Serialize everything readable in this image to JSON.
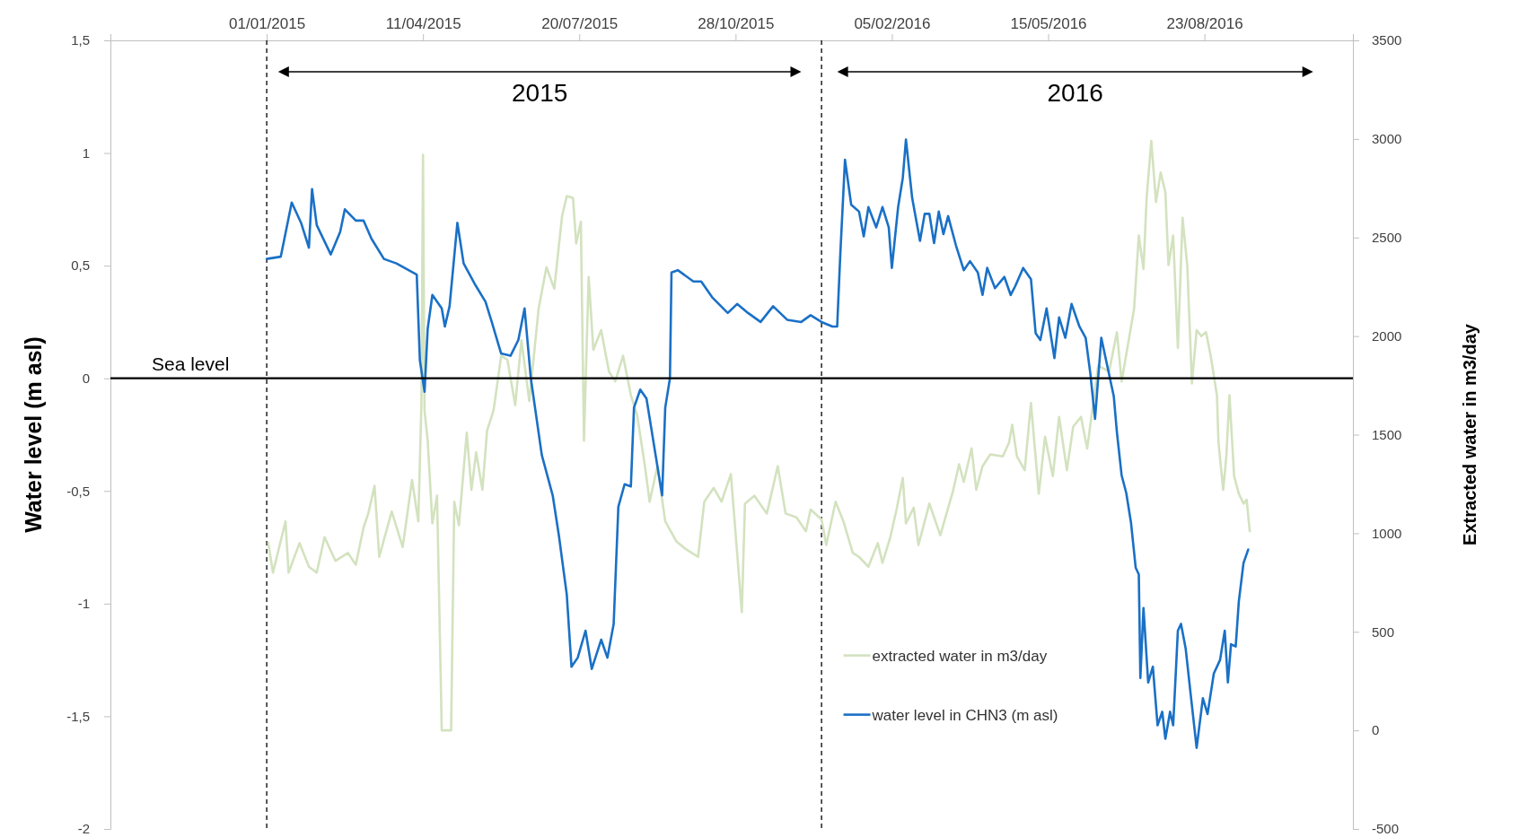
{
  "chart_data": {
    "type": "line",
    "xlabel": null,
    "ylabel": "Water level (m asl)",
    "y2label": "Extracted water in m3/day",
    "xlim": [
      "2014-09-23",
      "2016-11-26"
    ],
    "xticks": [
      {
        "value": "2015-01-01",
        "label": "01/01/2015"
      },
      {
        "value": "2015-04-11",
        "label": "11/04/2015"
      },
      {
        "value": "2015-07-20",
        "label": "20/07/2015"
      },
      {
        "value": "2015-10-28",
        "label": "28/10/2015"
      },
      {
        "value": "2016-02-05",
        "label": "05/02/2016"
      },
      {
        "value": "2016-05-15",
        "label": "15/05/2016"
      },
      {
        "value": "2016-08-23",
        "label": "23/08/2016"
      }
    ],
    "ylim": [
      -2,
      1.5
    ],
    "yticks": [
      -2,
      {
        "value": -1.5,
        "label": "-1,5"
      },
      -1,
      {
        "value": -0.5,
        "label": "-0,5"
      },
      0,
      {
        "value": 0.5,
        "label": "0,5"
      },
      1,
      {
        "value": 1.5,
        "label": "1,5"
      }
    ],
    "y2lim": [
      -500,
      3500
    ],
    "y2ticks": [
      -500,
      0,
      500,
      1000,
      1500,
      2000,
      2500,
      3000,
      3500
    ],
    "legend": "bottom",
    "annotations": [
      "2015",
      "2016"
    ],
    "ref_lines": [
      {
        "axis": "y",
        "value": 0,
        "label": "Sea level",
        "color": "#000000",
        "line_style": "solid"
      },
      {
        "axis": "x",
        "value": "2015-01-01",
        "color": "#000000",
        "line_style": "dashed"
      },
      {
        "axis": "x",
        "value": "2015-12-22",
        "color": "#000000",
        "line_style": "dashed"
      }
    ],
    "series": [
      {
        "name": "extracted water in m3/day",
        "color": "#d3e2bf",
        "axis": "y2",
        "x": [
          "2015-01-02",
          "2015-01-05",
          "2015-01-13",
          "2015-01-15",
          "2015-01-22",
          "2015-01-28",
          "2015-02-02",
          "2015-02-07",
          "2015-02-14",
          "2015-02-22",
          "2015-02-27",
          "2015-03-04",
          "2015-03-07",
          "2015-03-11",
          "2015-03-14",
          "2015-03-22",
          "2015-03-29",
          "2015-04-04",
          "2015-04-08",
          "2015-04-10",
          "2015-04-11",
          "2015-04-12",
          "2015-04-14",
          "2015-04-17",
          "2015-04-20",
          "2015-04-23",
          "2015-04-29",
          "2015-05-01",
          "2015-05-04",
          "2015-05-09",
          "2015-05-12",
          "2015-05-15",
          "2015-05-19",
          "2015-05-22",
          "2015-05-26",
          "2015-05-27",
          "2015-05-31",
          "2015-06-04",
          "2015-06-09",
          "2015-06-13",
          "2015-06-18",
          "2015-06-24",
          "2015-06-29",
          "2015-07-04",
          "2015-07-09",
          "2015-07-12",
          "2015-07-16",
          "2015-07-18",
          "2015-07-21",
          "2015-07-23",
          "2015-07-26",
          "2015-07-29",
          "2015-08-03",
          "2015-08-08",
          "2015-08-12",
          "2015-08-17",
          "2015-08-22",
          "2015-08-26",
          "2015-08-31",
          "2015-09-03",
          "2015-09-08",
          "2015-09-13",
          "2015-09-20",
          "2015-09-26",
          "2015-10-04",
          "2015-10-08",
          "2015-10-14",
          "2015-10-19",
          "2015-10-25",
          "2015-11-01",
          "2015-11-03",
          "2015-11-09",
          "2015-11-17",
          "2015-11-24",
          "2015-11-29",
          "2015-12-06",
          "2015-12-12",
          "2015-12-15",
          "2015-12-22",
          "2015-12-25",
          "2015-12-31",
          "2016-01-05",
          "2016-01-11",
          "2016-01-15",
          "2016-01-21",
          "2016-01-27",
          "2016-01-30",
          "2016-02-04",
          "2016-02-08",
          "2016-02-12",
          "2016-02-14",
          "2016-02-19",
          "2016-02-22",
          "2016-02-29",
          "2016-03-07",
          "2016-03-15",
          "2016-03-19",
          "2016-03-22",
          "2016-03-27",
          "2016-03-30",
          "2016-04-03",
          "2016-04-08",
          "2016-04-16",
          "2016-04-20",
          "2016-04-22",
          "2016-04-25",
          "2016-04-30",
          "2016-05-04",
          "2016-05-09",
          "2016-05-13",
          "2016-05-18",
          "2016-05-22",
          "2016-05-27",
          "2016-05-31",
          "2016-06-05",
          "2016-06-09",
          "2016-06-16",
          "2016-06-23",
          "2016-06-28",
          "2016-07-01",
          "2016-07-06",
          "2016-07-09",
          "2016-07-12",
          "2016-07-15",
          "2016-07-17",
          "2016-07-20",
          "2016-07-23",
          "2016-07-26",
          "2016-07-29",
          "2016-07-31",
          "2016-08-03",
          "2016-08-06",
          "2016-08-09",
          "2016-08-12",
          "2016-08-15",
          "2016-08-18",
          "2016-08-21",
          "2016-08-24",
          "2016-08-27",
          "2016-08-31",
          "2016-09-01",
          "2016-09-04",
          "2016-09-06",
          "2016-09-08",
          "2016-09-11",
          "2016-09-14",
          "2016-09-17",
          "2016-09-19",
          "2016-09-21"
        ],
        "values": [
          950,
          800,
          1060,
          800,
          950,
          830,
          800,
          980,
          860,
          900,
          840,
          1030,
          1100,
          1240,
          880,
          1110,
          930,
          1270,
          1060,
          1660,
          2920,
          1620,
          1470,
          1050,
          1190,
          0,
          0,
          1160,
          1040,
          1510,
          1220,
          1410,
          1220,
          1520,
          1620,
          1670,
          1900,
          1880,
          1650,
          1980,
          1670,
          2140,
          2350,
          2240,
          2610,
          2710,
          2700,
          2470,
          2580,
          1470,
          2300,
          1930,
          2030,
          1820,
          1770,
          1900,
          1700,
          1600,
          1340,
          1160,
          1340,
          1060,
          960,
          920,
          880,
          1160,
          1230,
          1160,
          1300,
          600,
          1150,
          1190,
          1100,
          1340,
          1100,
          1080,
          1010,
          1120,
          1070,
          940,
          1160,
          1060,
          900,
          880,
          830,
          950,
          850,
          980,
          1120,
          1280,
          1050,
          1130,
          940,
          1150,
          990,
          1210,
          1350,
          1260,
          1430,
          1220,
          1340,
          1400,
          1390,
          1460,
          1550,
          1390,
          1320,
          1660,
          1200,
          1490,
          1290,
          1590,
          1320,
          1540,
          1590,
          1430,
          1850,
          1820,
          2020,
          1770,
          2000,
          2140,
          2510,
          2340,
          2700,
          2990,
          2680,
          2830,
          2730,
          2360,
          2510,
          1940,
          2600,
          2360,
          1760,
          2030,
          2000,
          2020,
          1900,
          1700,
          1460,
          1220,
          1390,
          1700,
          1290,
          1200,
          1150,
          1170,
          1010
        ]
      },
      {
        "name": "water level in CHN3 (m asl)",
        "color": "#1a70c6",
        "x": [
          "2015-01-01",
          "2015-01-10",
          "2015-01-17",
          "2015-01-23",
          "2015-01-28",
          "2015-01-30",
          "2015-02-02",
          "2015-02-11",
          "2015-02-17",
          "2015-02-20",
          "2015-02-27",
          "2015-03-04",
          "2015-03-09",
          "2015-03-17",
          "2015-03-25",
          "2015-04-07",
          "2015-04-09",
          "2015-04-12",
          "2015-04-14",
          "2015-04-17",
          "2015-04-23",
          "2015-04-25",
          "2015-04-28",
          "2015-05-03",
          "2015-05-07",
          "2015-05-14",
          "2015-05-21",
          "2015-05-25",
          "2015-05-31",
          "2015-06-06",
          "2015-06-11",
          "2015-06-15",
          "2015-06-19",
          "2015-06-26",
          "2015-07-03",
          "2015-07-07",
          "2015-07-12",
          "2015-07-15",
          "2015-07-19",
          "2015-07-24",
          "2015-07-28",
          "2015-08-03",
          "2015-08-07",
          "2015-08-11",
          "2015-08-14",
          "2015-08-18",
          "2015-08-22",
          "2015-08-24",
          "2015-08-28",
          "2015-09-01",
          "2015-09-11",
          "2015-09-13",
          "2015-09-16",
          "2015-09-17",
          "2015-09-21",
          "2015-10-01",
          "2015-10-06",
          "2015-10-13",
          "2015-10-23",
          "2015-10-29",
          "2015-11-05",
          "2015-11-13",
          "2015-11-21",
          "2015-11-30",
          "2015-12-09",
          "2015-12-15",
          "2015-12-22",
          "2015-12-29",
          "2016-01-01",
          "2016-01-03",
          "2016-01-06",
          "2016-01-10",
          "2016-01-15",
          "2016-01-18",
          "2016-01-21",
          "2016-01-26",
          "2016-01-30",
          "2016-02-03",
          "2016-02-05",
          "2016-02-09",
          "2016-02-12",
          "2016-02-14",
          "2016-02-18",
          "2016-02-23",
          "2016-02-26",
          "2016-02-29",
          "2016-03-03",
          "2016-03-06",
          "2016-03-09",
          "2016-03-12",
          "2016-03-17",
          "2016-03-22",
          "2016-03-26",
          "2016-03-31",
          "2016-04-03",
          "2016-04-06",
          "2016-04-11",
          "2016-04-17",
          "2016-04-21",
          "2016-04-24",
          "2016-04-29",
          "2016-05-04",
          "2016-05-07",
          "2016-05-10",
          "2016-05-14",
          "2016-05-19",
          "2016-05-22",
          "2016-05-26",
          "2016-05-30",
          "2016-06-04",
          "2016-06-08",
          "2016-06-11",
          "2016-06-14",
          "2016-06-18",
          "2016-06-22",
          "2016-06-26",
          "2016-06-28",
          "2016-07-01",
          "2016-07-04",
          "2016-07-07",
          "2016-07-10",
          "2016-07-12",
          "2016-07-13",
          "2016-07-15",
          "2016-07-18",
          "2016-07-21",
          "2016-07-24",
          "2016-07-27",
          "2016-07-29",
          "2016-08-01",
          "2016-08-03",
          "2016-08-06",
          "2016-08-08",
          "2016-08-11",
          "2016-08-14",
          "2016-08-18",
          "2016-08-22",
          "2016-08-25",
          "2016-08-29",
          "2016-09-02",
          "2016-09-05",
          "2016-09-07",
          "2016-09-09",
          "2016-09-12",
          "2016-09-14",
          "2016-09-17",
          "2016-09-20"
        ],
        "values": [
          0.53,
          0.54,
          0.78,
          0.69,
          0.58,
          0.84,
          0.68,
          0.55,
          0.65,
          0.75,
          0.7,
          0.7,
          0.62,
          0.53,
          0.51,
          0.46,
          0.08,
          -0.06,
          0.22,
          0.37,
          0.31,
          0.23,
          0.32,
          0.69,
          0.51,
          0.42,
          0.34,
          0.25,
          0.11,
          0.1,
          0.17,
          0.31,
          0,
          -0.34,
          -0.52,
          -0.7,
          -0.96,
          -1.28,
          -1.24,
          -1.12,
          -1.29,
          -1.16,
          -1.24,
          -1.09,
          -0.57,
          -0.47,
          -0.48,
          -0.13,
          -0.05,
          -0.09,
          -0.52,
          -0.13,
          0,
          0.47,
          0.48,
          0.43,
          0.43,
          0.36,
          0.29,
          0.33,
          0.29,
          0.25,
          0.32,
          0.26,
          0.25,
          0.28,
          0.25,
          0.23,
          0.23,
          0.55,
          0.97,
          0.77,
          0.74,
          0.63,
          0.76,
          0.67,
          0.76,
          0.67,
          0.49,
          0.76,
          0.89,
          1.06,
          0.8,
          0.61,
          0.73,
          0.73,
          0.6,
          0.74,
          0.64,
          0.72,
          0.59,
          0.48,
          0.52,
          0.47,
          0.37,
          0.49,
          0.4,
          0.45,
          0.37,
          0.41,
          0.49,
          0.44,
          0.2,
          0.17,
          0.31,
          0.09,
          0.27,
          0.18,
          0.33,
          0.23,
          0.18,
          0.02,
          -0.18,
          0.18,
          0.05,
          -0.08,
          -0.24,
          -0.43,
          -0.51,
          -0.64,
          -0.84,
          -0.87,
          -1.33,
          -1.02,
          -1.35,
          -1.28,
          -1.54,
          -1.48,
          -1.6,
          -1.48,
          -1.54,
          -1.12,
          -1.09,
          -1.2,
          -1.39,
          -1.64,
          -1.42,
          -1.49,
          -1.31,
          -1.25,
          -1.12,
          -1.35,
          -1.18,
          -1.19,
          -0.99,
          -0.82,
          -0.76
        ]
      }
    ]
  }
}
